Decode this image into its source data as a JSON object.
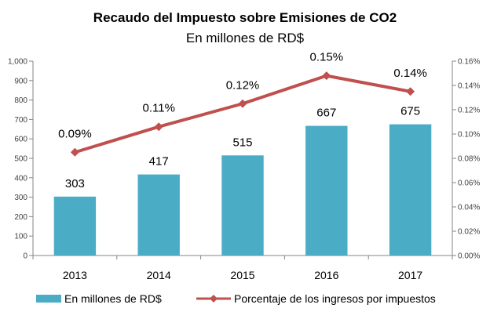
{
  "chart_data": {
    "type": "bar",
    "title": "Recaudo del Impuesto sobre Emisiones de CO2",
    "subtitle": "En millones de RD$",
    "categories": [
      "2013",
      "2014",
      "2015",
      "2016",
      "2017"
    ],
    "series": [
      {
        "name": "En millones de RD$",
        "type": "bar",
        "axis": "left",
        "color": "#4bacc6",
        "values": [
          303,
          417,
          515,
          667,
          675
        ],
        "labels": [
          "303",
          "417",
          "515",
          "667",
          "675"
        ]
      },
      {
        "name": "Porcentaje de los ingresos por impuestos",
        "type": "line",
        "axis": "right",
        "color": "#c0504d",
        "values": [
          0.085,
          0.106,
          0.125,
          0.148,
          0.135
        ],
        "labels": [
          "0.09%",
          "0.11%",
          "0.12%",
          "0.15%",
          "0.14%"
        ]
      }
    ],
    "y_left": {
      "ylim": [
        0,
        1000
      ],
      "ticks": [
        0,
        100,
        200,
        300,
        400,
        500,
        600,
        700,
        800,
        900,
        1000
      ],
      "tick_labels": [
        "0",
        "100",
        "200",
        "300",
        "400",
        "500",
        "600",
        "700",
        "800",
        "900",
        "1,000"
      ]
    },
    "y_right": {
      "ylim": [
        0,
        0.16
      ],
      "ticks": [
        0,
        0.02,
        0.04,
        0.06,
        0.08,
        0.1,
        0.12,
        0.14,
        0.16
      ],
      "tick_labels": [
        "0.00%",
        "0.02%",
        "0.04%",
        "0.06%",
        "0.08%",
        "0.10%",
        "0.12%",
        "0.14%",
        "0.16%"
      ]
    },
    "grid": false,
    "legend_position": "bottom"
  }
}
